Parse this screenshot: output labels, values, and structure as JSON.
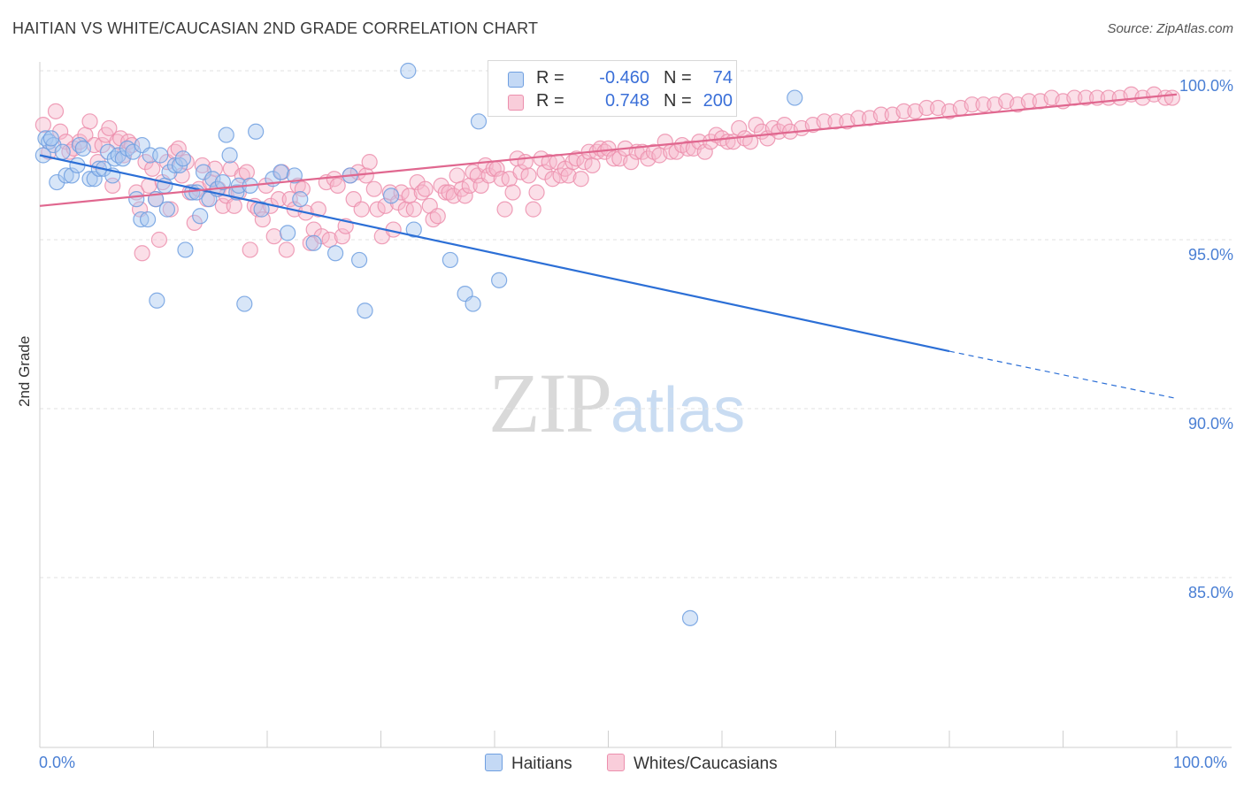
{
  "title": "HAITIAN VS WHITE/CAUCASIAN 2ND GRADE CORRELATION CHART",
  "source": "Source: ZipAtlas.com",
  "watermark": {
    "zip": "ZIP",
    "atlas": "atlas"
  },
  "legend_top": {
    "rows": [
      {
        "r_label": "R =",
        "r_value": "-0.460",
        "n_label": "N =",
        "n_value": "74"
      },
      {
        "r_label": "R =",
        "r_value": "0.748",
        "n_label": "N =",
        "n_value": "200"
      }
    ]
  },
  "chart_data": {
    "type": "scatter",
    "title": "HAITIAN VS WHITE/CAUCASIAN 2ND GRADE CORRELATION CHART",
    "xlabel": "",
    "ylabel": "2nd Grade",
    "xlim": [
      0,
      100
    ],
    "ylim": [
      80.5,
      100.8
    ],
    "x_tick_labels": [
      "0.0%",
      "100.0%"
    ],
    "y_ticks": [
      85,
      90,
      95,
      100
    ],
    "y_tick_labels": [
      "85.0%",
      "90.0%",
      "95.0%",
      "100.0%"
    ],
    "grid": true,
    "legend_position": "bottom",
    "series": [
      {
        "name": "Haitians",
        "color": "#a9c8f0",
        "stroke": "#6f9fe0",
        "line_color": "#2c6fd6",
        "trend": {
          "x0": 0,
          "y0": 97.5,
          "x1": 80,
          "y1": 91.7,
          "dash_to_x": 100,
          "dash_to_y": 90.3
        },
        "points": [
          [
            0.5,
            98.0
          ],
          [
            0.8,
            97.9
          ],
          [
            1.2,
            97.8
          ],
          [
            1.5,
            96.7
          ],
          [
            2,
            97.6
          ],
          [
            2.3,
            96.9
          ],
          [
            2.8,
            96.9
          ],
          [
            3.3,
            97.2
          ],
          [
            3.5,
            97.8
          ],
          [
            3.8,
            97.7
          ],
          [
            4.4,
            96.8
          ],
          [
            4.8,
            96.8
          ],
          [
            5.2,
            97.1
          ],
          [
            5.6,
            97.1
          ],
          [
            6,
            97.6
          ],
          [
            6.4,
            96.9
          ],
          [
            6.6,
            97.4
          ],
          [
            6.9,
            97.5
          ],
          [
            7.3,
            97.4
          ],
          [
            7.7,
            97.7
          ],
          [
            8.2,
            97.6
          ],
          [
            8.5,
            96.2
          ],
          [
            8.9,
            95.6
          ],
          [
            9,
            97.8
          ],
          [
            9.5,
            95.6
          ],
          [
            9.7,
            97.5
          ],
          [
            10.2,
            96.2
          ],
          [
            10.3,
            93.2
          ],
          [
            10.6,
            97.5
          ],
          [
            11,
            96.6
          ],
          [
            11.2,
            95.9
          ],
          [
            11.4,
            97.0
          ],
          [
            11.9,
            97.2
          ],
          [
            12.3,
            97.2
          ],
          [
            12.6,
            97.4
          ],
          [
            12.8,
            94.7
          ],
          [
            13.4,
            96.4
          ],
          [
            13.8,
            96.4
          ],
          [
            14.1,
            95.7
          ],
          [
            14.4,
            97.0
          ],
          [
            14.9,
            96.2
          ],
          [
            15.2,
            96.8
          ],
          [
            15.6,
            96.5
          ],
          [
            16.1,
            96.7
          ],
          [
            16.4,
            98.1
          ],
          [
            16.7,
            97.5
          ],
          [
            17.3,
            96.4
          ],
          [
            17.5,
            96.6
          ],
          [
            18,
            93.1
          ],
          [
            18.5,
            96.6
          ],
          [
            19,
            98.2
          ],
          [
            19.5,
            95.9
          ],
          [
            20.5,
            96.8
          ],
          [
            21.2,
            97.0
          ],
          [
            21.8,
            95.2
          ],
          [
            22.4,
            96.9
          ],
          [
            22.9,
            96.2
          ],
          [
            24.1,
            94.9
          ],
          [
            26,
            94.6
          ],
          [
            27.3,
            96.9
          ],
          [
            28.1,
            94.4
          ],
          [
            28.6,
            92.9
          ],
          [
            30.9,
            96.3
          ],
          [
            32.4,
            100.0
          ],
          [
            32.9,
            95.3
          ],
          [
            36.1,
            94.4
          ],
          [
            37.4,
            93.4
          ],
          [
            38.1,
            93.1
          ],
          [
            38.6,
            98.5
          ],
          [
            40.4,
            93.8
          ],
          [
            66.4,
            99.2
          ],
          [
            57.2,
            83.8
          ],
          [
            0.3,
            97.5
          ],
          [
            1.0,
            98.0
          ]
        ]
      },
      {
        "name": "Whites/Caucasians",
        "color": "#f6b8cb",
        "stroke": "#ec8fad",
        "line_color": "#e0678f",
        "trend": {
          "x0": 0,
          "y0": 96.0,
          "x1": 100,
          "y1": 99.3
        },
        "points": [
          [
            0.3,
            98.4
          ],
          [
            0.8,
            97.6
          ],
          [
            1.4,
            98.8
          ],
          [
            1.8,
            98.2
          ],
          [
            2.3,
            97.9
          ],
          [
            2.6,
            97.6
          ],
          [
            3.0,
            97.7
          ],
          [
            3.5,
            97.9
          ],
          [
            4.0,
            98.1
          ],
          [
            4.4,
            98.5
          ],
          [
            4.8,
            97.8
          ],
          [
            5.1,
            97.3
          ],
          [
            5.5,
            97.8
          ],
          [
            5.8,
            98.1
          ],
          [
            6.1,
            98.3
          ],
          [
            6.4,
            96.6
          ],
          [
            6.8,
            97.9
          ],
          [
            7.1,
            98.0
          ],
          [
            7.4,
            97.5
          ],
          [
            7.8,
            97.9
          ],
          [
            8.1,
            97.8
          ],
          [
            8.5,
            96.4
          ],
          [
            8.8,
            95.9
          ],
          [
            9.0,
            94.6
          ],
          [
            9.3,
            97.3
          ],
          [
            9.6,
            96.6
          ],
          [
            9.9,
            97.1
          ],
          [
            10.2,
            96.2
          ],
          [
            10.5,
            95.0
          ],
          [
            10.8,
            96.7
          ],
          [
            11.2,
            97.3
          ],
          [
            11.5,
            95.9
          ],
          [
            11.9,
            97.6
          ],
          [
            12.2,
            97.7
          ],
          [
            12.5,
            96.9
          ],
          [
            12.9,
            97.3
          ],
          [
            13.2,
            96.4
          ],
          [
            13.6,
            95.5
          ],
          [
            14.0,
            96.5
          ],
          [
            14.3,
            97.2
          ],
          [
            14.7,
            96.2
          ],
          [
            15.0,
            96.7
          ],
          [
            15.4,
            97.1
          ],
          [
            15.7,
            96.5
          ],
          [
            16.1,
            96.0
          ],
          [
            16.4,
            96.3
          ],
          [
            16.8,
            97.1
          ],
          [
            17.1,
            96.0
          ],
          [
            17.5,
            96.4
          ],
          [
            17.8,
            96.9
          ],
          [
            18.2,
            97.0
          ],
          [
            18.5,
            94.7
          ],
          [
            18.9,
            96.0
          ],
          [
            19.2,
            95.9
          ],
          [
            19.6,
            95.6
          ],
          [
            19.9,
            96.6
          ],
          [
            20.3,
            96.0
          ],
          [
            20.6,
            95.1
          ],
          [
            21.0,
            96.2
          ],
          [
            21.3,
            97.0
          ],
          [
            21.7,
            94.7
          ],
          [
            22.0,
            96.2
          ],
          [
            22.4,
            95.9
          ],
          [
            22.7,
            96.6
          ],
          [
            23.1,
            96.5
          ],
          [
            23.4,
            95.8
          ],
          [
            23.8,
            94.9
          ],
          [
            24.1,
            95.3
          ],
          [
            24.5,
            95.9
          ],
          [
            24.8,
            95.1
          ],
          [
            25.2,
            96.7
          ],
          [
            25.5,
            95.0
          ],
          [
            25.9,
            96.8
          ],
          [
            26.2,
            96.6
          ],
          [
            26.6,
            95.1
          ],
          [
            26.9,
            95.4
          ],
          [
            27.3,
            96.9
          ],
          [
            27.6,
            96.2
          ],
          [
            28.0,
            97.0
          ],
          [
            28.3,
            95.9
          ],
          [
            28.7,
            96.9
          ],
          [
            29.0,
            97.3
          ],
          [
            29.4,
            96.5
          ],
          [
            29.7,
            95.9
          ],
          [
            30.1,
            95.1
          ],
          [
            30.4,
            96.0
          ],
          [
            30.8,
            96.4
          ],
          [
            31.1,
            95.3
          ],
          [
            31.5,
            96.1
          ],
          [
            31.8,
            96.4
          ],
          [
            32.2,
            95.9
          ],
          [
            32.5,
            96.3
          ],
          [
            32.9,
            95.9
          ],
          [
            33.2,
            96.7
          ],
          [
            33.6,
            96.4
          ],
          [
            33.9,
            96.5
          ],
          [
            34.3,
            96.0
          ],
          [
            34.6,
            95.6
          ],
          [
            35.0,
            95.7
          ],
          [
            35.3,
            96.6
          ],
          [
            35.7,
            96.4
          ],
          [
            36.0,
            96.4
          ],
          [
            36.4,
            96.3
          ],
          [
            36.7,
            96.9
          ],
          [
            37.1,
            96.5
          ],
          [
            37.4,
            96.3
          ],
          [
            37.8,
            96.6
          ],
          [
            38.1,
            97.0
          ],
          [
            38.5,
            96.9
          ],
          [
            38.8,
            96.6
          ],
          [
            39.2,
            97.2
          ],
          [
            39.5,
            96.9
          ],
          [
            39.9,
            97.1
          ],
          [
            40.2,
            97.1
          ],
          [
            40.6,
            96.8
          ],
          [
            40.9,
            95.9
          ],
          [
            41.3,
            96.8
          ],
          [
            41.6,
            96.4
          ],
          [
            42.0,
            97.4
          ],
          [
            42.3,
            97.0
          ],
          [
            42.7,
            97.3
          ],
          [
            43.0,
            96.9
          ],
          [
            43.4,
            95.9
          ],
          [
            43.7,
            96.4
          ],
          [
            44.1,
            97.4
          ],
          [
            44.4,
            97.0
          ],
          [
            44.8,
            97.3
          ],
          [
            45.1,
            96.8
          ],
          [
            45.5,
            97.3
          ],
          [
            45.8,
            96.9
          ],
          [
            46.2,
            97.1
          ],
          [
            46.5,
            96.9
          ],
          [
            46.9,
            97.3
          ],
          [
            47.2,
            97.4
          ],
          [
            47.6,
            96.8
          ],
          [
            47.9,
            97.3
          ],
          [
            48.3,
            97.6
          ],
          [
            48.6,
            97.2
          ],
          [
            49.0,
            97.6
          ],
          [
            49.3,
            97.7
          ],
          [
            49.7,
            97.6
          ],
          [
            50.0,
            97.7
          ],
          [
            50.5,
            97.4
          ],
          [
            51,
            97.4
          ],
          [
            51.5,
            97.7
          ],
          [
            52,
            97.3
          ],
          [
            52.5,
            97.6
          ],
          [
            53,
            97.6
          ],
          [
            53.5,
            97.4
          ],
          [
            54,
            97.6
          ],
          [
            54.5,
            97.5
          ],
          [
            55,
            97.9
          ],
          [
            55.5,
            97.6
          ],
          [
            56,
            97.6
          ],
          [
            56.5,
            97.8
          ],
          [
            57,
            97.7
          ],
          [
            57.5,
            97.7
          ],
          [
            58,
            97.9
          ],
          [
            58.5,
            97.6
          ],
          [
            59,
            97.9
          ],
          [
            59.5,
            98.1
          ],
          [
            60,
            98.0
          ],
          [
            60.5,
            97.9
          ],
          [
            61,
            97.9
          ],
          [
            61.5,
            98.3
          ],
          [
            62,
            98.0
          ],
          [
            62.5,
            97.9
          ],
          [
            63,
            98.4
          ],
          [
            63.5,
            98.2
          ],
          [
            64,
            98.0
          ],
          [
            64.5,
            98.3
          ],
          [
            65,
            98.2
          ],
          [
            65.5,
            98.4
          ],
          [
            66,
            98.2
          ],
          [
            67,
            98.3
          ],
          [
            68,
            98.4
          ],
          [
            69,
            98.5
          ],
          [
            70,
            98.5
          ],
          [
            71,
            98.5
          ],
          [
            72,
            98.6
          ],
          [
            73,
            98.6
          ],
          [
            74,
            98.7
          ],
          [
            75,
            98.7
          ],
          [
            76,
            98.8
          ],
          [
            77,
            98.8
          ],
          [
            78,
            98.9
          ],
          [
            79,
            98.9
          ],
          [
            80,
            98.8
          ],
          [
            81,
            98.9
          ],
          [
            82,
            99.0
          ],
          [
            83,
            99.0
          ],
          [
            84,
            99.0
          ],
          [
            85,
            99.1
          ],
          [
            86,
            99.0
          ],
          [
            87,
            99.1
          ],
          [
            88,
            99.1
          ],
          [
            89,
            99.2
          ],
          [
            90,
            99.1
          ],
          [
            91,
            99.2
          ],
          [
            92,
            99.2
          ],
          [
            93,
            99.2
          ],
          [
            94,
            99.2
          ],
          [
            95,
            99.2
          ],
          [
            96,
            99.3
          ],
          [
            97,
            99.2
          ],
          [
            98,
            99.3
          ],
          [
            99,
            99.2
          ],
          [
            99.6,
            99.2
          ]
        ]
      }
    ]
  },
  "legend_bottom": {
    "items": [
      "Haitians",
      "Whites/Caucasians"
    ]
  }
}
